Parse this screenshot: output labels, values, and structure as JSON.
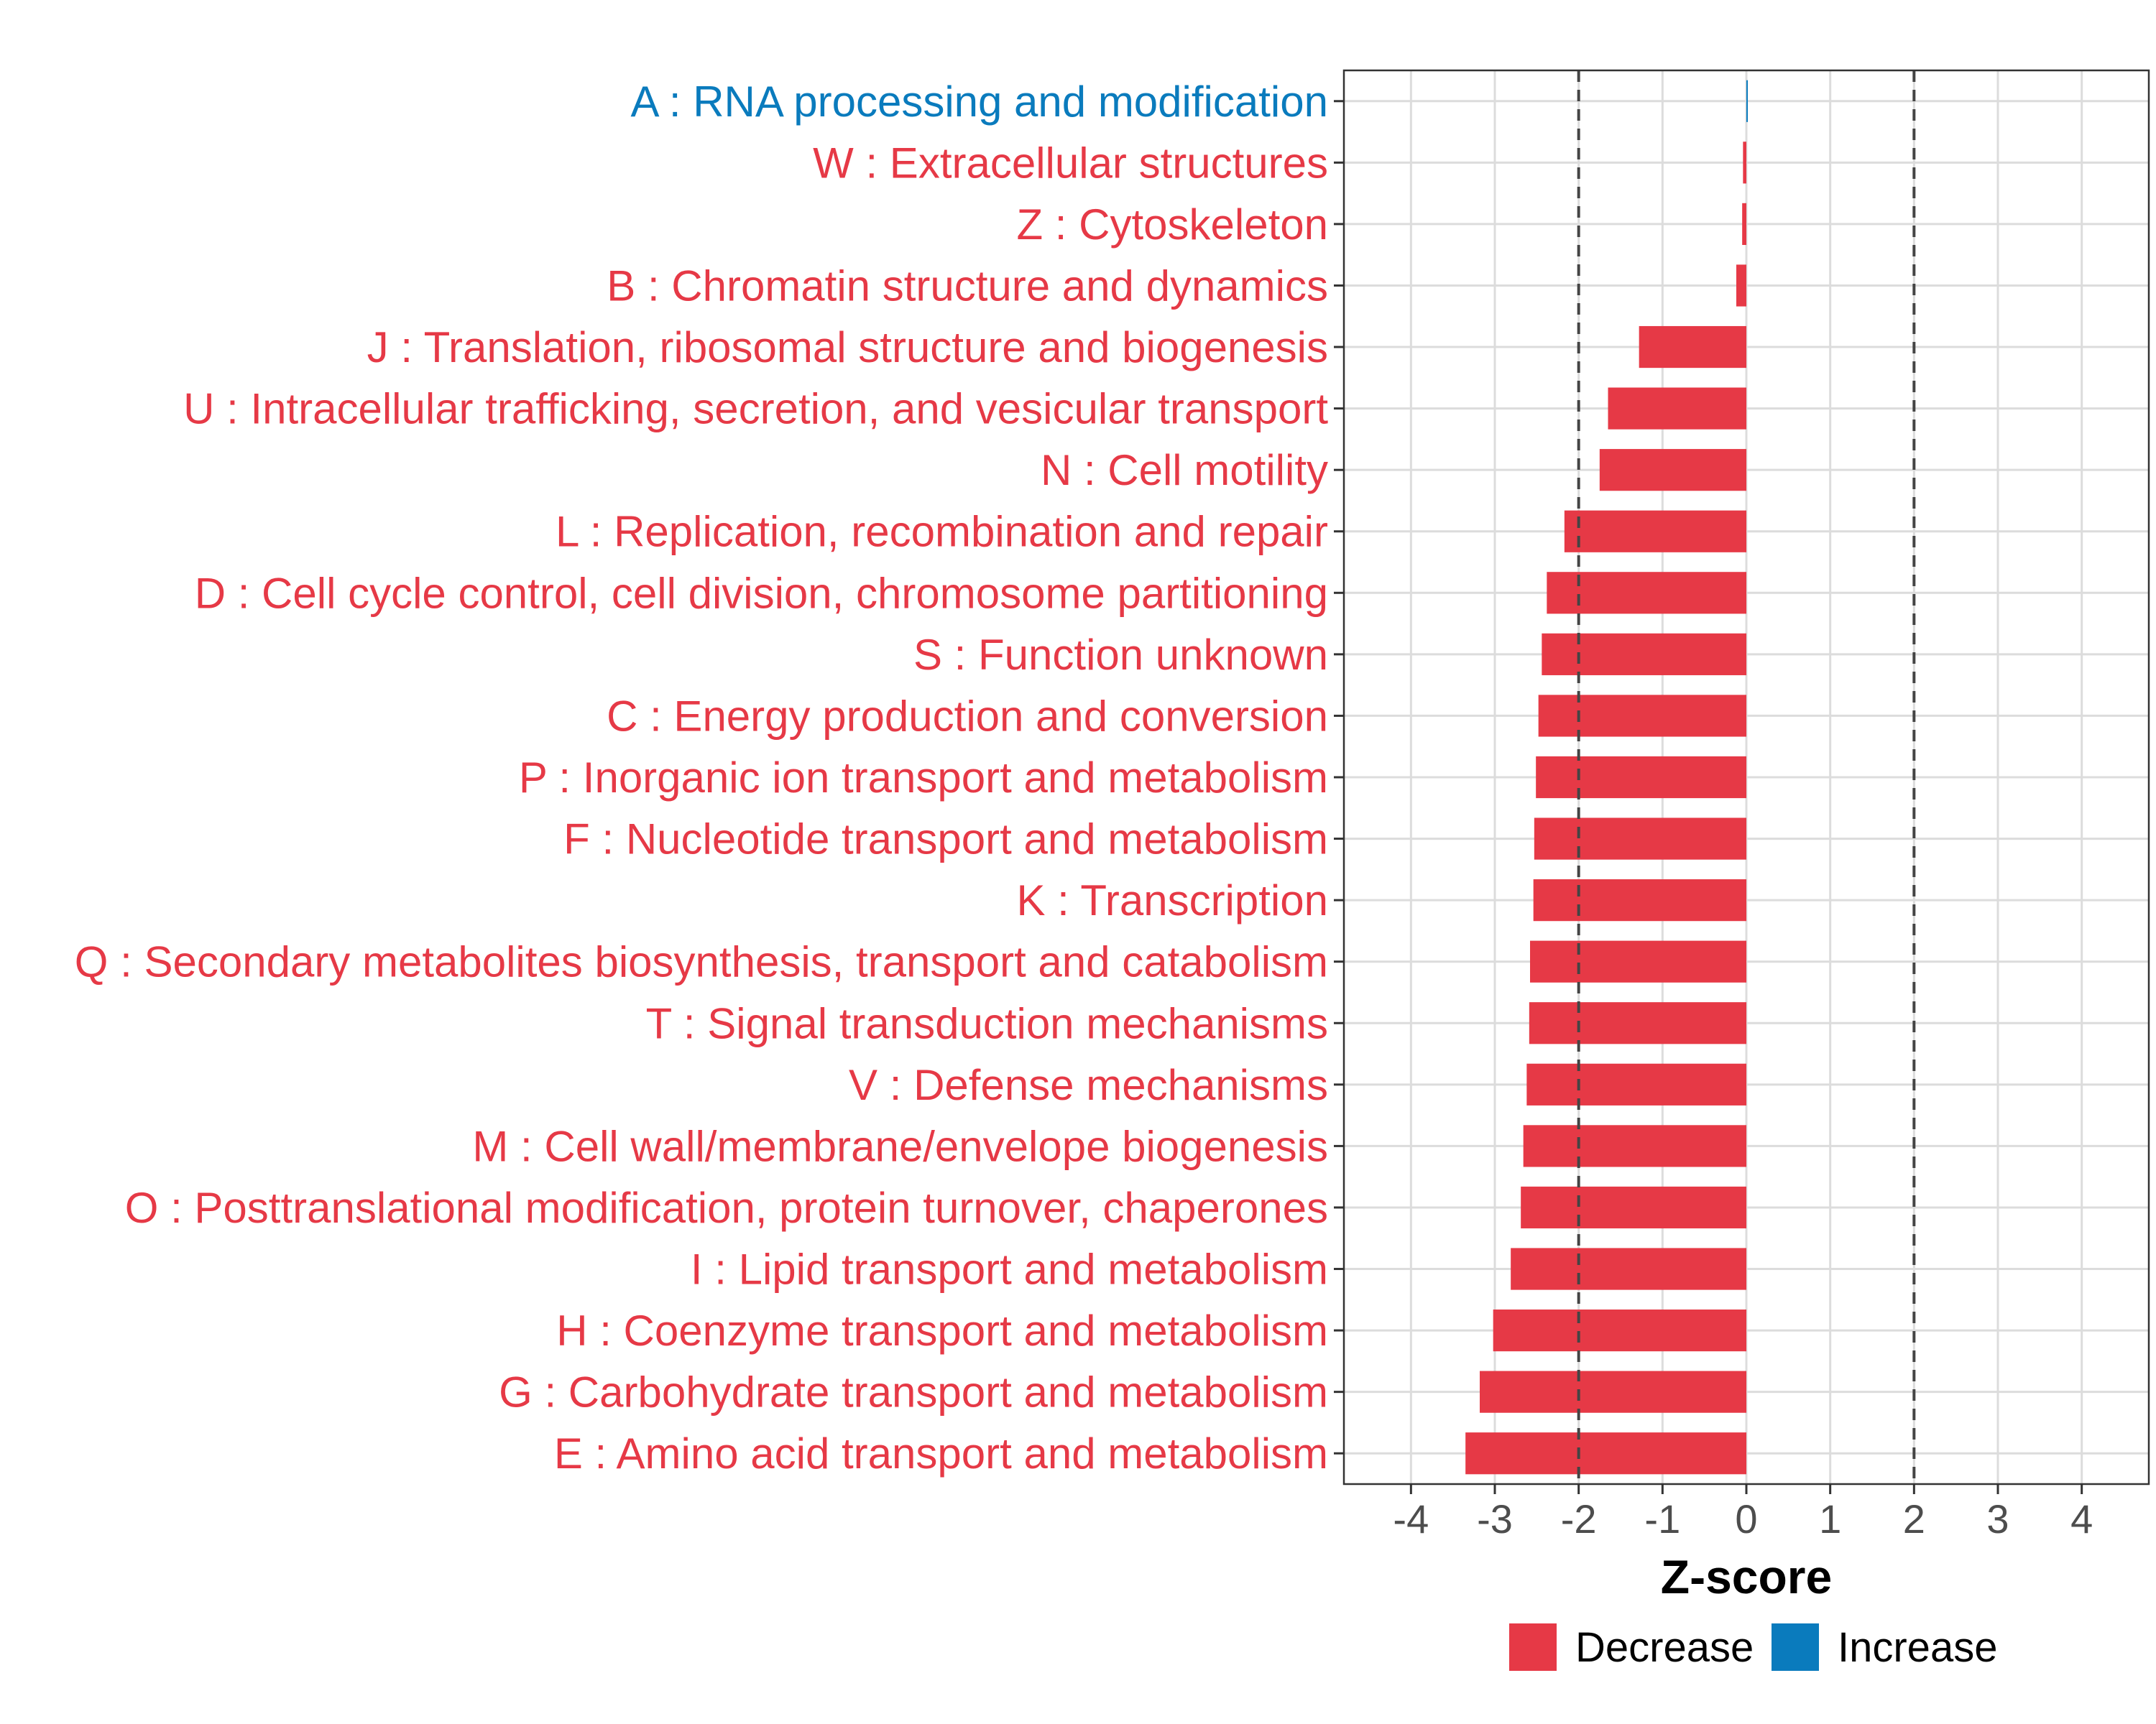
{
  "chart_data": {
    "type": "bar",
    "orientation": "horizontal",
    "title": "",
    "xlabel": "Z-score",
    "ylabel": "",
    "xlim": [
      -4.8,
      4.8
    ],
    "xticks": [
      "-4",
      "-3",
      "-2",
      "-1",
      "0",
      "1",
      "2",
      "3",
      "4"
    ],
    "xtick_values": [
      -4,
      -3,
      -2,
      -1,
      0,
      1,
      2,
      3,
      4
    ],
    "reference_lines": [
      -2,
      2
    ],
    "grid": true,
    "legend_position": "bottom",
    "colors": {
      "Decrease": "#e63946",
      "Increase": "#0a7bbd"
    },
    "categories": [
      "A : RNA processing and modification",
      "W : Extracellular structures",
      "Z : Cytoskeleton",
      "B : Chromatin structure and dynamics",
      "J : Translation, ribosomal structure and biogenesis",
      "U : Intracellular trafficking, secretion, and vesicular transport",
      "N : Cell motility",
      "L : Replication, recombination and repair",
      "D : Cell cycle control, cell division, chromosome partitioning",
      "S : Function unknown",
      "C : Energy production and conversion",
      "P : Inorganic ion transport and metabolism",
      "F : Nucleotide transport and metabolism",
      "K : Transcription",
      "Q : Secondary metabolites biosynthesis, transport and catabolism",
      "T : Signal transduction mechanisms",
      "V : Defense mechanisms",
      "M : Cell wall/membrane/envelope biogenesis",
      "O : Posttranslational modification, protein turnover, chaperones",
      "I : Lipid transport and metabolism",
      "H : Coenzyme transport and metabolism",
      "G : Carbohydrate transport and metabolism",
      "E : Amino acid transport and metabolism"
    ],
    "values": [
      0.01,
      -0.04,
      -0.05,
      -0.12,
      -1.28,
      -1.65,
      -1.75,
      -2.17,
      -2.38,
      -2.44,
      -2.48,
      -2.51,
      -2.53,
      -2.54,
      -2.58,
      -2.59,
      -2.62,
      -2.66,
      -2.69,
      -2.81,
      -3.02,
      -3.18,
      -3.35
    ],
    "directions": [
      "Increase",
      "Decrease",
      "Decrease",
      "Decrease",
      "Decrease",
      "Decrease",
      "Decrease",
      "Decrease",
      "Decrease",
      "Decrease",
      "Decrease",
      "Decrease",
      "Decrease",
      "Decrease",
      "Decrease",
      "Decrease",
      "Decrease",
      "Decrease",
      "Decrease",
      "Decrease",
      "Decrease",
      "Decrease",
      "Decrease"
    ],
    "legend": [
      "Decrease",
      "Increase"
    ]
  }
}
